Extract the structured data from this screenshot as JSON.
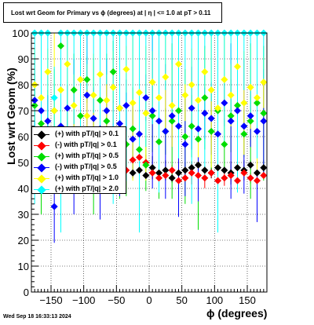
{
  "title": "Lost wrt Geom for Primary vs ϕ (degrees) at |  η | <= 1.0 at pT > 0.11",
  "footer": "Wed Sep 18 16:33:13 2024",
  "chart_data": {
    "type": "scatter",
    "xlabel": "ϕ (degrees)",
    "ylabel": "Lost wrt Geom (%)",
    "xlim": [
      -180,
      180
    ],
    "ylim": [
      0,
      100
    ],
    "xticks": [
      -150,
      -100,
      -50,
      0,
      50,
      100,
      150
    ],
    "yticks": [
      0,
      10,
      20,
      30,
      40,
      50,
      60,
      70,
      80,
      90,
      100
    ],
    "grid": true,
    "legend_position": "left-middle",
    "series": [
      {
        "name": "(+) with pT/|q| > 0.1",
        "color": "#000000",
        "x": [
          -25,
          -15,
          -5,
          5,
          15,
          25,
          35,
          45,
          55,
          65,
          75,
          85,
          95,
          105,
          115,
          125,
          135,
          145,
          155,
          165,
          175
        ],
        "y": [
          46,
          47,
          45,
          48,
          46,
          47,
          44,
          46,
          47,
          48,
          49,
          47,
          46,
          48,
          47,
          46,
          48,
          47,
          49,
          46,
          48
        ]
      },
      {
        "name": "(-) with pT/|q| > 0.1",
        "color": "#ff0000",
        "x": [
          -175,
          -165,
          -155,
          -145,
          -135,
          -125,
          -115,
          -105,
          -95,
          -85,
          -75,
          -65,
          -55,
          -45,
          -35,
          -25,
          -15,
          -5,
          5,
          15,
          25,
          35,
          45,
          55,
          65,
          75,
          85,
          95,
          105,
          115,
          125,
          135,
          145,
          155,
          165,
          175
        ],
        "y": [
          48,
          46,
          47,
          45,
          49,
          46,
          47,
          48,
          45,
          46,
          47,
          49,
          46,
          48,
          47,
          51,
          52,
          50,
          46,
          44,
          45,
          47,
          43,
          44,
          46,
          45,
          44,
          46,
          43,
          44,
          45,
          43,
          46,
          44,
          43,
          45
        ]
      },
      {
        "name": "(+) with pT/|q| > 0.5",
        "color": "#00dd00",
        "x": [
          -175,
          -165,
          -155,
          -145,
          -135,
          -125,
          -115,
          -105,
          -95,
          -85,
          -75,
          -65,
          -55,
          -45,
          -35,
          -25,
          -15,
          -5,
          5,
          15,
          25,
          35,
          45,
          55,
          65,
          75,
          85,
          95,
          105,
          115,
          125,
          135,
          145,
          155,
          165,
          175
        ],
        "y": [
          72,
          65,
          58,
          70,
          95,
          62,
          78,
          68,
          82,
          60,
          74,
          66,
          85,
          71,
          57,
          63,
          55,
          49,
          68,
          58,
          62,
          66,
          70,
          60,
          64,
          59,
          75,
          62,
          70,
          57,
          68,
          72,
          61,
          66,
          73,
          69
        ]
      },
      {
        "name": "(-) with pT/|q| > 0.5",
        "color": "#0000ff",
        "x": [
          -175,
          -165,
          -155,
          -145,
          -135,
          -125,
          -115,
          -105,
          -95,
          -85,
          -75,
          -65,
          -55,
          -45,
          -35,
          -25,
          -15,
          -5,
          5,
          15,
          25,
          35,
          45,
          55,
          65,
          75,
          85,
          95,
          105,
          115,
          125,
          135,
          145,
          155,
          165,
          175
        ],
        "y": [
          74,
          70,
          66,
          33,
          64,
          71,
          60,
          62,
          76,
          67,
          63,
          70,
          58,
          65,
          72,
          59,
          61,
          75,
          70,
          66,
          62,
          68,
          64,
          57,
          71,
          63,
          69,
          67,
          61,
          73,
          66,
          70,
          64,
          68,
          62,
          66
        ]
      },
      {
        "name": "(+) with pT/|q| > 1.0",
        "color": "#ffff00",
        "x": [
          -175,
          -165,
          -155,
          -145,
          -135,
          -125,
          -115,
          -105,
          -95,
          -85,
          -75,
          -65,
          -55,
          -45,
          -35,
          -25,
          -15,
          -5,
          5,
          15,
          25,
          35,
          45,
          55,
          65,
          75,
          85,
          95,
          105,
          115,
          125,
          135,
          145,
          155,
          165,
          175
        ],
        "y": [
          80,
          75,
          85,
          70,
          78,
          88,
          72,
          82,
          68,
          76,
          84,
          74,
          79,
          71,
          86,
          73,
          77,
          69,
          81,
          75,
          83,
          72,
          88,
          76,
          80,
          74,
          85,
          78,
          71,
          82,
          76,
          87,
          73,
          79,
          75,
          81
        ]
      },
      {
        "name": "(+) with pT/|q| > 2.0",
        "color": "#00ffff",
        "x": [
          -175,
          -165,
          -155,
          -145,
          -135,
          -125,
          -115,
          -105,
          -95,
          -85,
          -75,
          -65,
          -55,
          -45,
          -35,
          -25,
          -15,
          -5,
          5,
          15,
          25,
          35,
          45,
          55,
          65,
          75,
          85,
          95,
          105,
          115,
          125,
          135,
          145,
          155,
          165,
          175
        ],
        "y": [
          100,
          100,
          100,
          75,
          100,
          100,
          100,
          100,
          100,
          100,
          100,
          100,
          100,
          100,
          100,
          100,
          100,
          100,
          100,
          100,
          100,
          100,
          100,
          100,
          100,
          100,
          100,
          100,
          100,
          100,
          100,
          100,
          100,
          100,
          100,
          100
        ]
      }
    ]
  }
}
